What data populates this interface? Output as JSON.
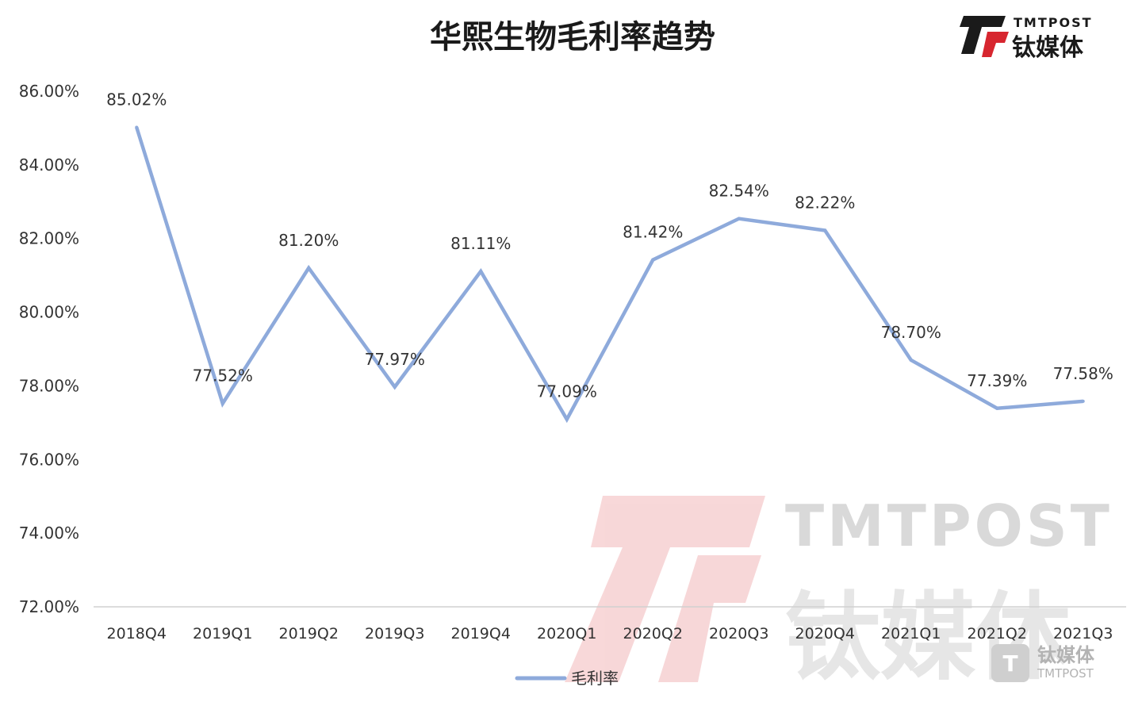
{
  "logo": {
    "text_en": "TMTPOST",
    "text_cn": "钛媒体",
    "color_red": "#d7262f",
    "color_dark": "#1a1a1a"
  },
  "watermark": {
    "text_en": "TMTPOST",
    "text_cn": "钛媒体",
    "badge_en": "TMTPOST",
    "badge_cn": "钛媒体",
    "color": "#e0e0e0"
  },
  "chart_data": {
    "type": "line",
    "title": "华熙生物毛利率趋势",
    "categories": [
      "2018Q4",
      "2019Q1",
      "2019Q2",
      "2019Q3",
      "2019Q4",
      "2020Q1",
      "2020Q2",
      "2020Q3",
      "2020Q4",
      "2021Q1",
      "2021Q2",
      "2021Q3"
    ],
    "series": [
      {
        "name": "毛利率",
        "values": [
          85.02,
          77.52,
          81.2,
          77.97,
          81.11,
          77.09,
          81.42,
          82.54,
          82.22,
          78.7,
          77.39,
          77.58
        ],
        "labels": [
          "85.02%",
          "77.52%",
          "81.20%",
          "77.97%",
          "81.11%",
          "77.09%",
          "81.42%",
          "82.54%",
          "82.22%",
          "78.70%",
          "77.39%",
          "77.58%"
        ],
        "color": "#8eaadb"
      }
    ],
    "ylim": [
      72,
      86
    ],
    "yticks": [
      86,
      84,
      82,
      80,
      78,
      76,
      74,
      72
    ],
    "ytick_labels": [
      "86.00%",
      "84.00%",
      "82.00%",
      "80.00%",
      "78.00%",
      "76.00%",
      "74.00%",
      "72.00%"
    ],
    "xlabel": "",
    "ylabel": "",
    "grid": false,
    "legend_position": "bottom"
  }
}
